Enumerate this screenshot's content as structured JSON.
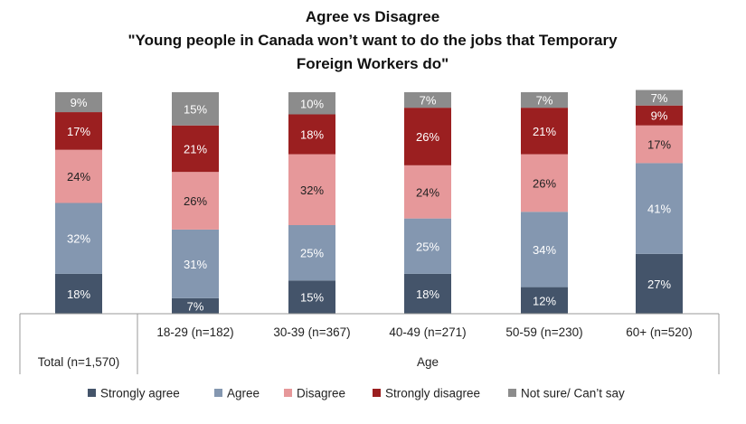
{
  "chart_data": {
    "type": "bar",
    "stacked": true,
    "percent_stacked": true,
    "title": [
      "Agree vs Disagree",
      "\"Young people in Canada won’t want to do the jobs that Temporary",
      "Foreign Workers do\""
    ],
    "categories": [
      "Total (n=1,570)",
      "18-29 (n=182)",
      "30-39 (n=367)",
      "40-49 (n=271)",
      "50-59 (n=230)",
      "60+ (n=520)"
    ],
    "category_group_label": "Age",
    "series": [
      {
        "name": "Strongly agree",
        "color": "#44546a",
        "label_color": "#ffffff",
        "values": [
          18,
          7,
          15,
          18,
          12,
          27
        ]
      },
      {
        "name": "Agree",
        "color": "#8497b0",
        "label_color": "#ffffff",
        "values": [
          32,
          31,
          25,
          25,
          34,
          41
        ]
      },
      {
        "name": "Disagree",
        "color": "#e6989a",
        "label_color": "#222222",
        "values": [
          24,
          26,
          32,
          24,
          26,
          17
        ]
      },
      {
        "name": "Strongly disagree",
        "color": "#9b1f20",
        "label_color": "#ffffff",
        "values": [
          17,
          21,
          18,
          26,
          21,
          9
        ]
      },
      {
        "name": "Not sure/ Can’t say",
        "color": "#8c8c8c",
        "label_color": "#ffffff",
        "values": [
          9,
          15,
          10,
          7,
          7,
          7
        ]
      }
    ],
    "value_suffix": "%",
    "ylim": [
      0,
      100
    ],
    "legend_position": "bottom"
  }
}
